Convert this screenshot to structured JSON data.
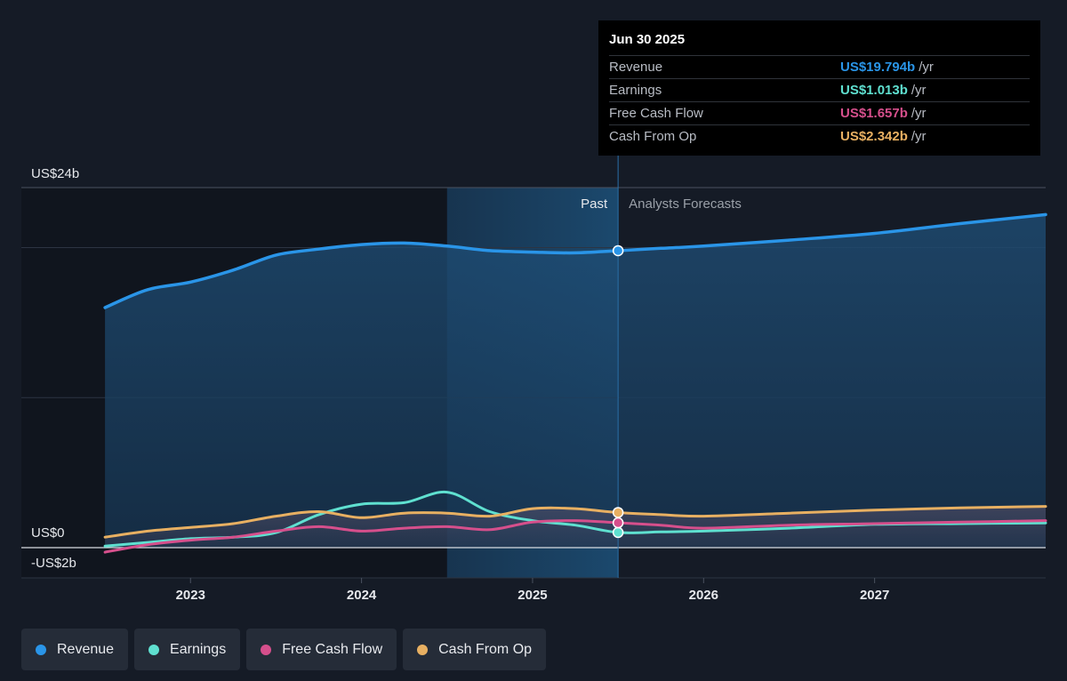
{
  "colors": {
    "revenue": "#2a95e8",
    "earnings": "#5fe0d0",
    "free_cash_flow": "#d64f8c",
    "cash_from_op": "#e8b062"
  },
  "tooltip": {
    "date": "Jun 30 2025",
    "rows": [
      {
        "label": "Revenue",
        "value": "US$19.794b",
        "unit": "/yr",
        "color_key": "revenue"
      },
      {
        "label": "Earnings",
        "value": "US$1.013b",
        "unit": "/yr",
        "color_key": "earnings"
      },
      {
        "label": "Free Cash Flow",
        "value": "US$1.657b",
        "unit": "/yr",
        "color_key": "free_cash_flow"
      },
      {
        "label": "Cash From Op",
        "value": "US$2.342b",
        "unit": "/yr",
        "color_key": "cash_from_op"
      }
    ]
  },
  "legend": [
    {
      "label": "Revenue",
      "color_key": "revenue"
    },
    {
      "label": "Earnings",
      "color_key": "earnings"
    },
    {
      "label": "Free Cash Flow",
      "color_key": "free_cash_flow"
    },
    {
      "label": "Cash From Op",
      "color_key": "cash_from_op"
    }
  ],
  "chart_data": {
    "type": "line",
    "y_axis_labels": [
      {
        "label": "US$24b",
        "value": 24
      },
      {
        "label": "US$0",
        "value": 0
      },
      {
        "label": "-US$2b",
        "value": -2
      }
    ],
    "ylim": [
      -2,
      24
    ],
    "xlim": [
      2022.25,
      2028.0
    ],
    "x_ticks": [
      {
        "label": "2023",
        "value": 2023
      },
      {
        "label": "2024",
        "value": 2024
      },
      {
        "label": "2025",
        "value": 2025
      },
      {
        "label": "2026",
        "value": 2026
      },
      {
        "label": "2027",
        "value": 2027
      }
    ],
    "past_label": "Past",
    "forecast_label": "Analysts Forecasts",
    "past_end": 2025.5,
    "highlight_start": 2024.5,
    "grid": true,
    "series": [
      {
        "name": "Revenue",
        "color_key": "revenue",
        "fill": true,
        "points": [
          [
            2022.5,
            16.0
          ],
          [
            2022.75,
            17.2
          ],
          [
            2023.0,
            17.7
          ],
          [
            2023.25,
            18.5
          ],
          [
            2023.5,
            19.5
          ],
          [
            2023.75,
            19.9
          ],
          [
            2024.0,
            20.2
          ],
          [
            2024.25,
            20.3
          ],
          [
            2024.5,
            20.1
          ],
          [
            2024.75,
            19.8
          ],
          [
            2025.0,
            19.7
          ],
          [
            2025.25,
            19.65
          ],
          [
            2025.5,
            19.794
          ],
          [
            2025.75,
            19.95
          ],
          [
            2026.0,
            20.1
          ],
          [
            2026.5,
            20.5
          ],
          [
            2027.0,
            20.95
          ],
          [
            2027.5,
            21.6
          ],
          [
            2028.0,
            22.2
          ]
        ]
      },
      {
        "name": "Earnings",
        "color_key": "earnings",
        "fill": false,
        "points": [
          [
            2022.5,
            0.1
          ],
          [
            2022.75,
            0.35
          ],
          [
            2023.0,
            0.6
          ],
          [
            2023.25,
            0.7
          ],
          [
            2023.5,
            1.0
          ],
          [
            2023.75,
            2.2
          ],
          [
            2024.0,
            2.9
          ],
          [
            2024.25,
            3.0
          ],
          [
            2024.5,
            3.7
          ],
          [
            2024.75,
            2.4
          ],
          [
            2025.0,
            1.8
          ],
          [
            2025.25,
            1.5
          ],
          [
            2025.5,
            1.013
          ],
          [
            2025.75,
            1.05
          ],
          [
            2026.0,
            1.1
          ],
          [
            2026.5,
            1.3
          ],
          [
            2027.0,
            1.55
          ],
          [
            2027.5,
            1.6
          ],
          [
            2028.0,
            1.65
          ]
        ]
      },
      {
        "name": "Free Cash Flow",
        "color_key": "free_cash_flow",
        "fill": false,
        "points": [
          [
            2022.5,
            -0.3
          ],
          [
            2022.75,
            0.2
          ],
          [
            2023.0,
            0.5
          ],
          [
            2023.25,
            0.7
          ],
          [
            2023.5,
            1.1
          ],
          [
            2023.75,
            1.4
          ],
          [
            2024.0,
            1.1
          ],
          [
            2024.25,
            1.3
          ],
          [
            2024.5,
            1.4
          ],
          [
            2024.75,
            1.2
          ],
          [
            2025.0,
            1.7
          ],
          [
            2025.25,
            1.8
          ],
          [
            2025.5,
            1.657
          ],
          [
            2025.75,
            1.5
          ],
          [
            2026.0,
            1.3
          ],
          [
            2026.5,
            1.5
          ],
          [
            2027.0,
            1.6
          ],
          [
            2027.5,
            1.7
          ],
          [
            2028.0,
            1.8
          ]
        ]
      },
      {
        "name": "Cash From Op",
        "color_key": "cash_from_op",
        "fill": false,
        "points": [
          [
            2022.5,
            0.7
          ],
          [
            2022.75,
            1.1
          ],
          [
            2023.0,
            1.35
          ],
          [
            2023.25,
            1.6
          ],
          [
            2023.5,
            2.1
          ],
          [
            2023.75,
            2.4
          ],
          [
            2024.0,
            2.0
          ],
          [
            2024.25,
            2.3
          ],
          [
            2024.5,
            2.3
          ],
          [
            2024.75,
            2.1
          ],
          [
            2025.0,
            2.6
          ],
          [
            2025.25,
            2.6
          ],
          [
            2025.5,
            2.342
          ],
          [
            2025.75,
            2.2
          ],
          [
            2026.0,
            2.1
          ],
          [
            2026.5,
            2.3
          ],
          [
            2027.0,
            2.5
          ],
          [
            2027.5,
            2.65
          ],
          [
            2028.0,
            2.75
          ]
        ]
      }
    ]
  }
}
